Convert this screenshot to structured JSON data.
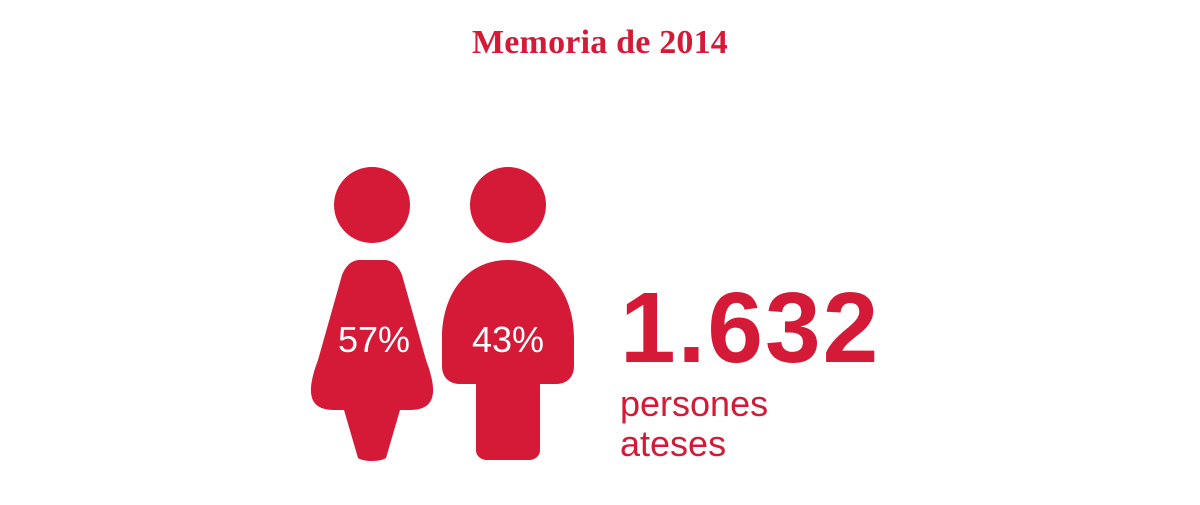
{
  "title": "Memoria de 2014",
  "colors": {
    "accent": "#d41a37",
    "background": "#ffffff",
    "label_on_figure": "#ffffff"
  },
  "icons": {
    "women": "woman-figure-icon",
    "men": "man-figure-icon"
  },
  "breakdown": {
    "women_percent": "57%",
    "men_percent": "43%"
  },
  "total": {
    "number": "1.632",
    "label_line1": "persones",
    "label_line2": "ateses"
  }
}
